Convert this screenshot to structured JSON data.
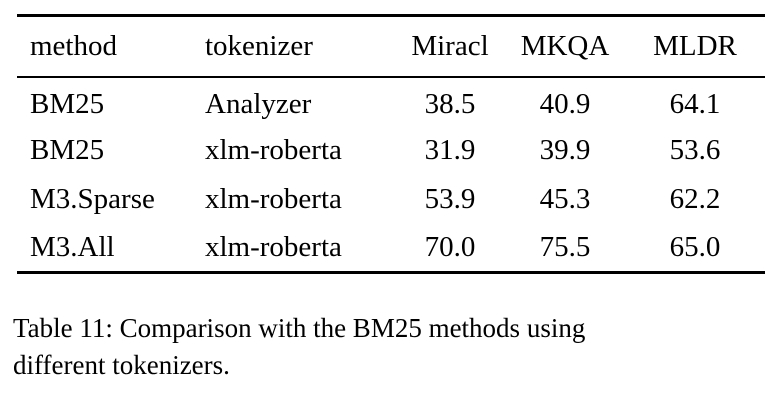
{
  "table": {
    "columns": [
      {
        "label": "method",
        "align": "left"
      },
      {
        "label": "tokenizer",
        "align": "left"
      },
      {
        "label": "Miracl",
        "align": "center"
      },
      {
        "label": "MKQA",
        "align": "center"
      },
      {
        "label": "MLDR",
        "align": "center"
      }
    ],
    "rows": [
      [
        "BM25",
        "Analyzer",
        "38.5",
        "40.9",
        "64.1"
      ],
      [
        "BM25",
        "xlm-roberta",
        "31.9",
        "39.9",
        "53.6"
      ],
      [
        "M3.Sparse",
        "xlm-roberta",
        "53.9",
        "45.3",
        "62.2"
      ],
      [
        "M3.All",
        "xlm-roberta",
        "70.0",
        "75.5",
        "65.0"
      ]
    ]
  },
  "caption": {
    "lines": [
      "Table 11: Comparison with the BM25 methods using",
      "different tokenizers."
    ],
    "full_text": "Table 11: Comparison with the BM25 methods using different tokenizers."
  },
  "colors": {
    "text": "#000000",
    "background": "#ffffff",
    "rule": "#000000"
  }
}
